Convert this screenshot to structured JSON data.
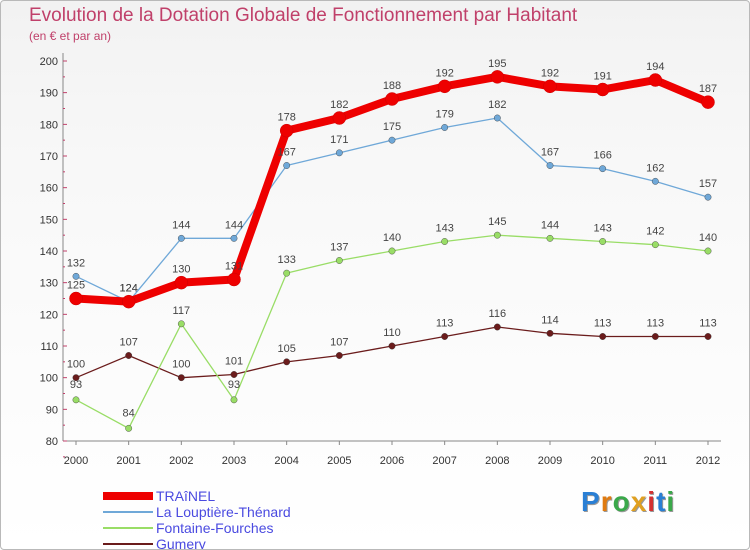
{
  "title": "Evolution de la Dotation Globale de Fonctionnement par Habitant",
  "subtitle": "(en € et par an)",
  "logo": {
    "text": "Proxiti"
  },
  "chart_data": {
    "type": "line",
    "title": "Evolution de la Dotation Globale de Fonctionnement par Habitant",
    "subtitle": "(en € et par an)",
    "xlabel": "",
    "ylabel": "",
    "ylim": [
      80,
      200
    ],
    "yticks": [
      80,
      90,
      100,
      110,
      120,
      130,
      140,
      150,
      160,
      170,
      180,
      190,
      200
    ],
    "grid": false,
    "legend": "bottom-left",
    "x": [
      "2000",
      "2001",
      "2002",
      "2003",
      "2004",
      "2005",
      "2006",
      "2007",
      "2008",
      "2009",
      "2010",
      "2011",
      "2012"
    ],
    "series": [
      {
        "name": "Gumery",
        "color": "#6b1c1c",
        "values": [
          100,
          107,
          100,
          101,
          105,
          107,
          110,
          113,
          116,
          114,
          113,
          113,
          113
        ]
      },
      {
        "name": "Fontaine-Fourches",
        "color": "#99dd66",
        "values": [
          93,
          84,
          117,
          93,
          133,
          137,
          140,
          143,
          145,
          144,
          143,
          142,
          140
        ]
      },
      {
        "name": "La Louptière-Thénard",
        "color": "#6fa8d8",
        "values": [
          132,
          124,
          144,
          144,
          167,
          171,
          175,
          179,
          182,
          167,
          166,
          162,
          157
        ]
      },
      {
        "name": "TRAîNEL",
        "color": "#ee0000",
        "values": [
          125,
          124,
          130,
          131,
          178,
          182,
          188,
          192,
          195,
          192,
          191,
          194,
          187
        ]
      }
    ]
  }
}
